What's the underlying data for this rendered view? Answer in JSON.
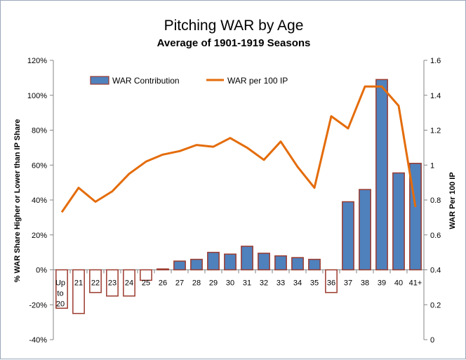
{
  "chart_data": {
    "type": "bar+line",
    "title": "Pitching WAR by Age",
    "subtitle": "Average of 1901-1919 Seasons",
    "ylabel": "% WAR Share Higher or Lower than IP Share",
    "y2label": "WAR Per 100 IP",
    "categories": [
      "Up to 20",
      "21",
      "22",
      "23",
      "24",
      "25",
      "26",
      "27",
      "28",
      "29",
      "30",
      "31",
      "32",
      "33",
      "34",
      "35",
      "36",
      "37",
      "38",
      "39",
      "40",
      "41+"
    ],
    "y_ticks": [
      "-40%",
      "-20%",
      "0%",
      "20%",
      "40%",
      "60%",
      "80%",
      "100%",
      "120%"
    ],
    "y2_ticks": [
      "0",
      "0.2",
      "0.4",
      "0.6",
      "0.8",
      "1",
      "1.2",
      "1.4",
      "1.6"
    ],
    "ylim": [
      -0.4,
      1.2
    ],
    "y2lim": [
      0,
      1.6
    ],
    "grid": false,
    "legend_position": "top",
    "series": [
      {
        "name": "WAR Contribution",
        "type": "bar",
        "axis": "left",
        "color": "#4f81bd",
        "border_color": "#9b3a2d",
        "values": [
          -0.22,
          -0.25,
          -0.13,
          -0.15,
          -0.15,
          -0.06,
          0.005,
          0.05,
          0.06,
          0.1,
          0.09,
          0.135,
          0.095,
          0.08,
          0.07,
          0.06,
          -0.13,
          0.39,
          0.46,
          1.09,
          0.555,
          0.61
        ]
      },
      {
        "name": "WAR per 100 IP",
        "type": "line",
        "axis": "right",
        "color": "#e46c0a",
        "values": [
          0.73,
          0.87,
          0.79,
          0.85,
          0.95,
          1.02,
          1.06,
          1.08,
          1.115,
          1.105,
          1.155,
          1.1,
          1.03,
          1.135,
          0.99,
          0.87,
          1.28,
          1.21,
          1.45,
          1.45,
          1.34,
          0.76
        ]
      }
    ]
  }
}
